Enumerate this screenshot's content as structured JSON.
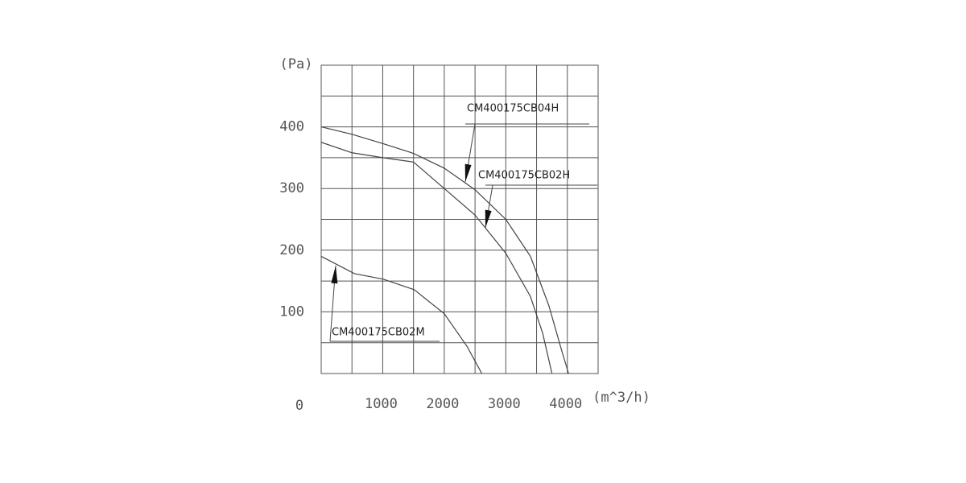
{
  "chart_data": {
    "type": "line",
    "y_label": "(Pa)",
    "x_label": "(m^3/h)",
    "origin_label": "0",
    "xlim": [
      0,
      4500
    ],
    "ylim": [
      0,
      500
    ],
    "xticks": [
      1000,
      2000,
      3000,
      4000
    ],
    "yticks": [
      100,
      200,
      300,
      400
    ],
    "xgrid": [
      500,
      1000,
      1500,
      2000,
      2500,
      3000,
      3500,
      4000,
      4500
    ],
    "ygrid": [
      50,
      100,
      150,
      200,
      250,
      300,
      350,
      400,
      450,
      500
    ],
    "grid": true,
    "series": [
      {
        "name": "CM400175CB04H",
        "color": "#444444",
        "x": [
          0,
          500,
          1000,
          1500,
          2000,
          2500,
          3000,
          3400,
          3700,
          3900,
          4020
        ],
        "values": [
          400,
          388,
          373,
          357,
          333,
          298,
          250,
          190,
          110,
          40,
          0
        ]
      },
      {
        "name": "CM400175CB02H",
        "color": "#444444",
        "x": [
          0,
          500,
          1000,
          1500,
          2000,
          2500,
          3000,
          3400,
          3600,
          3750
        ],
        "values": [
          375,
          358,
          350,
          343,
          300,
          257,
          195,
          125,
          65,
          0
        ]
      },
      {
        "name": "CM400175CB02M",
        "color": "#444444",
        "x": [
          0,
          540,
          1010,
          1510,
          2000,
          2370,
          2610
        ],
        "values": [
          190,
          162,
          153,
          136,
          97,
          44,
          0
        ]
      }
    ]
  }
}
